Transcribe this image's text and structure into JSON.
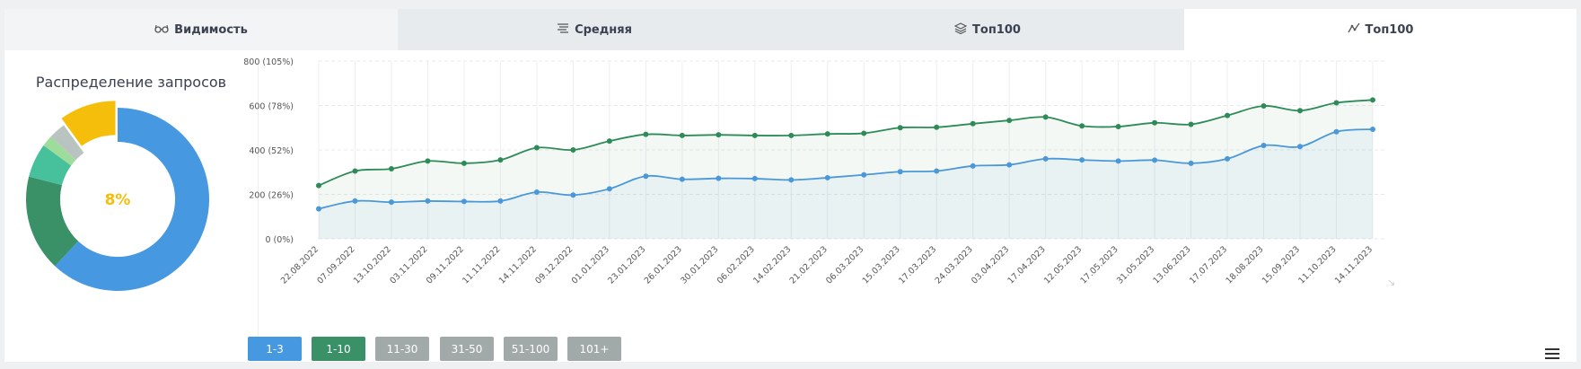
{
  "tabs": [
    {
      "label": "Видимость",
      "icon": "glasses-icon"
    },
    {
      "label": "Средняя",
      "icon": "list-lines-icon"
    },
    {
      "label": "Топ100",
      "icon": "layers-icon"
    },
    {
      "label": "Топ100",
      "icon": "line-chart-icon"
    }
  ],
  "distribution": {
    "title": "Распределение запросов",
    "center_label": "8%",
    "slices": [
      {
        "value": 62,
        "color": "#4698e0"
      },
      {
        "value": 17,
        "color": "#3a9167"
      },
      {
        "value": 6,
        "color": "#47c09c"
      },
      {
        "value": 2,
        "color": "#9ddc9a"
      },
      {
        "value": 3,
        "color": "#b9c4c1"
      },
      {
        "value": 10,
        "color": "#f5be0b"
      }
    ]
  },
  "chart_data": {
    "type": "line",
    "ylim": [
      0,
      800
    ],
    "y_ticks": [
      "0 (0%)",
      "200 (26%)",
      "400 (52%)",
      "600 (78%)",
      "800 (105%)"
    ],
    "x": [
      "22.08.2022",
      "07.09.2022",
      "13.10.2022",
      "03.11.2022",
      "09.11.2022",
      "11.11.2022",
      "14.11.2022",
      "09.12.2022",
      "01.01.2023",
      "23.01.2023",
      "26.01.2023",
      "30.01.2023",
      "06.02.2023",
      "14.02.2023",
      "21.02.2023",
      "06.03.2023",
      "15.03.2023",
      "17.03.2023",
      "24.03.2023",
      "03.04.2023",
      "17.04.2023",
      "12.05.2023",
      "17.05.2023",
      "31.05.2023",
      "13.06.2023",
      "17.07.2023",
      "18.08.2023",
      "15.09.2023",
      "11.10.2023",
      "14.11.2023"
    ],
    "series": [
      {
        "color": "#2e8b57",
        "values": [
          240,
          305,
          315,
          350,
          340,
          355,
          410,
          400,
          440,
          470,
          465,
          468,
          465,
          465,
          472,
          475,
          500,
          502,
          518,
          533,
          548,
          508,
          505,
          522,
          515,
          555,
          598,
          577,
          612,
          625
        ]
      },
      {
        "color": "#4a98d8",
        "values": [
          135,
          170,
          165,
          170,
          168,
          170,
          210,
          197,
          225,
          282,
          268,
          272,
          271,
          265,
          275,
          288,
          302,
          305,
          328,
          333,
          360,
          355,
          350,
          354,
          340,
          360,
          420,
          415,
          482,
          493
        ]
      }
    ],
    "grid": true
  },
  "legend_buttons": [
    {
      "label": "1-3",
      "color": "#4698e0"
    },
    {
      "label": "1-10",
      "color": "#3a9167"
    },
    {
      "label": "11-30",
      "color": "#a2aaa9"
    },
    {
      "label": "31-50",
      "color": "#a2aaa9"
    },
    {
      "label": "51-100",
      "color": "#a2aaa9"
    },
    {
      "label": "101+",
      "color": "#a2aaa9"
    }
  ],
  "menu_icon": "hamburger-menu-icon"
}
